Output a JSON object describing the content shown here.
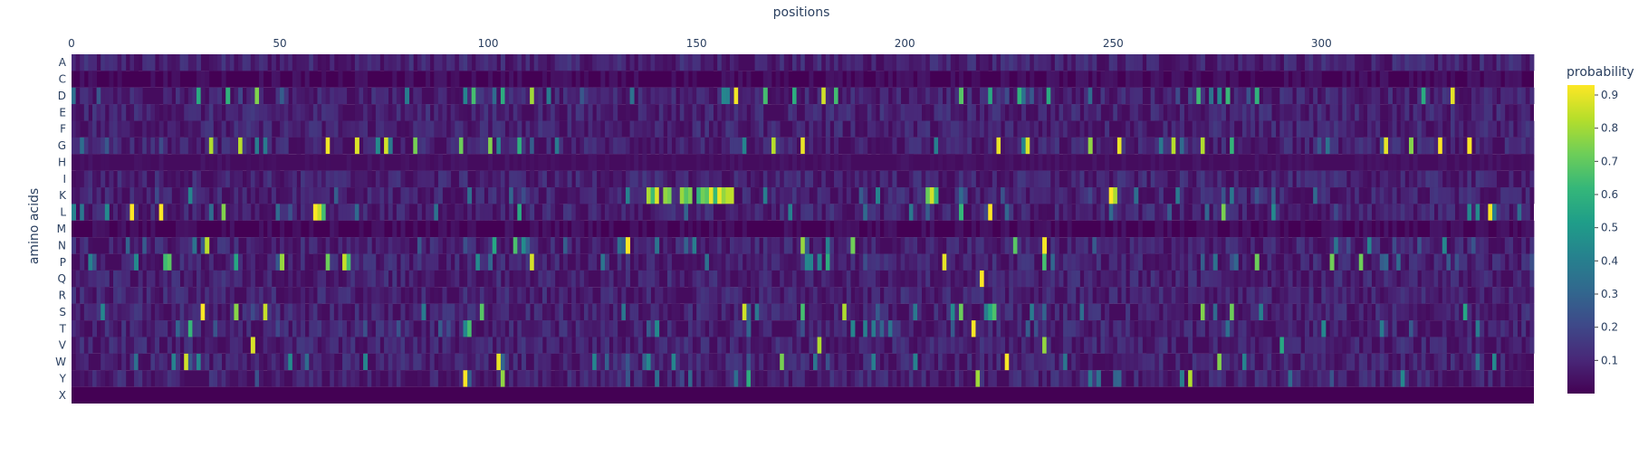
{
  "chart_data": {
    "type": "heatmap",
    "title": "",
    "xlabel": "positions",
    "ylabel": "amino acids",
    "x_range": [
      0,
      351
    ],
    "x_ticks": [
      "0",
      "50",
      "100",
      "150",
      "200",
      "250",
      "300"
    ],
    "y_categories": [
      "A",
      "C",
      "D",
      "E",
      "F",
      "G",
      "H",
      "I",
      "K",
      "L",
      "M",
      "N",
      "P",
      "Q",
      "R",
      "S",
      "T",
      "V",
      "W",
      "Y",
      "X"
    ],
    "colorbar": {
      "title": "probability",
      "range": [
        0,
        0.93
      ],
      "ticks": [
        "0.1",
        "0.2",
        "0.3",
        "0.4",
        "0.5",
        "0.6",
        "0.7",
        "0.8",
        "0.9"
      ],
      "colorscale": "Viridis",
      "colors": [
        "#440154",
        "#482878",
        "#3e4989",
        "#31688e",
        "#26828e",
        "#1f9e89",
        "#35b779",
        "#6ece58",
        "#b5de2b",
        "#fde725"
      ]
    },
    "highlights": [
      {
        "aa": "D",
        "pos": [
          30,
          37,
          44,
          96,
          103,
          110,
          159,
          166,
          173,
          180,
          183,
          213,
          220,
          227,
          234,
          270,
          277,
          284,
          324,
          331
        ]
      },
      {
        "aa": "G",
        "pos": [
          33,
          40,
          61,
          68,
          75,
          82,
          93,
          100,
          107,
          168,
          175,
          222,
          229,
          244,
          251,
          264,
          271,
          278,
          315,
          321,
          328,
          335
        ]
      },
      {
        "aa": "K",
        "pos": [
          138,
          139,
          140,
          142,
          143,
          146,
          147,
          148,
          150,
          151,
          152,
          153,
          154,
          155,
          156,
          157,
          158,
          205,
          206,
          207,
          249,
          250
        ]
      },
      {
        "aa": "L",
        "pos": [
          14,
          21,
          36,
          58,
          59,
          60,
          107,
          213,
          220,
          276,
          340
        ]
      },
      {
        "aa": "N",
        "pos": [
          32,
          101,
          106,
          133,
          175,
          187,
          226,
          233
        ]
      },
      {
        "aa": "P",
        "pos": [
          22,
          23,
          39,
          50,
          61,
          65,
          66,
          110,
          181,
          209,
          233,
          284,
          302,
          309
        ]
      },
      {
        "aa": "Q",
        "pos": [
          218
        ]
      },
      {
        "aa": "R",
        "pos": []
      },
      {
        "aa": "S",
        "pos": [
          31,
          39,
          46,
          98,
          161,
          175,
          185,
          213,
          220,
          221,
          271,
          278,
          334
        ]
      },
      {
        "aa": "T",
        "pos": [
          28,
          95,
          216
        ]
      },
      {
        "aa": "V",
        "pos": [
          43,
          179,
          233,
          290
        ]
      },
      {
        "aa": "W",
        "pos": [
          27,
          102,
          170,
          224,
          275
        ]
      },
      {
        "aa": "Y",
        "pos": [
          94,
          103,
          162,
          217,
          268
        ]
      }
    ]
  }
}
